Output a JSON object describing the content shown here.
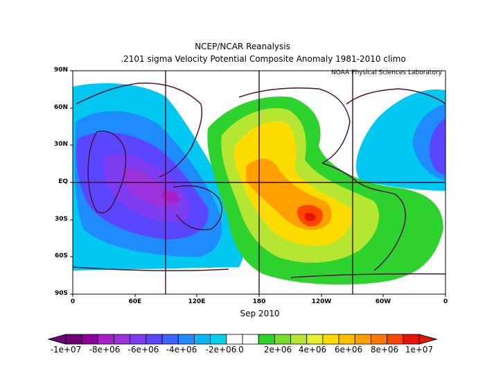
{
  "title": {
    "line1": "NCEP/NCAR Reanalysis",
    "line2": ".2101 sigma Velocity Potential  Composite Anomaly 1981-2010 climo"
  },
  "credit": "NOAA Physical Sciences Laboratory",
  "date_label": "Sep 2010",
  "axes": {
    "lat_labels": [
      "90N",
      "60N",
      "30N",
      "EQ",
      "30S",
      "60S",
      "90S"
    ],
    "lon_labels": [
      "0",
      "60E",
      "120E",
      "180",
      "120W",
      "60W",
      "0"
    ]
  },
  "colorbar": {
    "labels": [
      "-1e+07",
      "-8e+06",
      "-6e+06",
      "-4e+06",
      "-2e+06",
      "0",
      "2e+06",
      "4e+06",
      "6e+06",
      "8e+06",
      "1e+07"
    ],
    "colors": [
      "#6e0078",
      "#8c00a0",
      "#aa1ec8",
      "#9b32dc",
      "#7d3cf0",
      "#5a46ff",
      "#3c64ff",
      "#1e8cff",
      "#0ab4f0",
      "#00d2eb",
      "#ffffff",
      "#ffffff",
      "#2ed22e",
      "#78dc28",
      "#b4e632",
      "#e6f032",
      "#ffdc00",
      "#ffbe00",
      "#ffa000",
      "#ff7800",
      "#ff4600",
      "#e61400"
    ]
  },
  "chart_data": {
    "type": "map",
    "field": "velocity potential anomaly (0.2101 sigma)",
    "period": "Sep 2010",
    "climatology": "1981-2010",
    "region": "global",
    "anomaly_centers": [
      {
        "sign": "negative",
        "lon": 60,
        "lat": 0
      },
      {
        "sign": "negative",
        "lon": 100,
        "lat": -15
      },
      {
        "sign": "negative",
        "lon": -10,
        "lat": 15
      },
      {
        "sign": "positive",
        "lon": -140,
        "lat": -25
      },
      {
        "sign": "positive",
        "lon": 175,
        "lat": 10
      }
    ],
    "colorbar_range": [
      -10000000,
      10000000
    ]
  }
}
